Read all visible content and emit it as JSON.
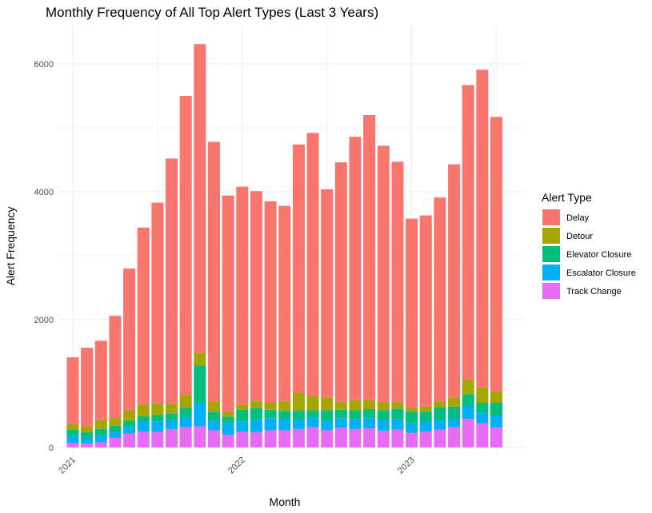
{
  "chart_data": {
    "type": "bar",
    "stacked": true,
    "title": "Monthly Frequency of All Top Alert Types (Last 3 Years)",
    "xlabel": "Month",
    "ylabel": "Alert Frequency",
    "ylim": [
      0,
      6500
    ],
    "yticks": [
      0,
      2000,
      4000,
      6000
    ],
    "xtick_labels": [
      "2021",
      "2022",
      "2023"
    ],
    "grid": true,
    "legend_title": "Alert Type",
    "legend_position": "right",
    "colors": {
      "Delay": "#f8766d",
      "Detour": "#a3a500",
      "Elevator Closure": "#00bf7d",
      "Escalator Closure": "#00b0f6",
      "Track Change": "#e76bf3"
    },
    "categories": [
      "2021-01",
      "2021-02",
      "2021-03",
      "2021-04",
      "2021-05",
      "2021-06",
      "2021-07",
      "2021-08",
      "2021-09",
      "2021-10",
      "2021-11",
      "2021-12",
      "2022-01",
      "2022-02",
      "2022-03",
      "2022-04",
      "2022-05",
      "2022-06",
      "2022-07",
      "2022-08",
      "2022-09",
      "2022-10",
      "2022-11",
      "2022-12",
      "2023-01",
      "2023-02",
      "2023-03",
      "2023-04",
      "2023-05",
      "2023-06",
      "2023-07"
    ],
    "series": [
      {
        "name": "Track Change",
        "values": [
          70,
          60,
          80,
          150,
          220,
          250,
          240,
          290,
          320,
          330,
          270,
          200,
          250,
          240,
          270,
          270,
          290,
          320,
          270,
          310,
          290,
          300,
          260,
          280,
          230,
          250,
          280,
          320,
          450,
          380,
          310
        ]
      },
      {
        "name": "Escalator Closure",
        "values": [
          110,
          90,
          100,
          100,
          100,
          150,
          170,
          140,
          150,
          370,
          150,
          180,
          160,
          200,
          190,
          180,
          140,
          150,
          150,
          150,
          150,
          160,
          170,
          160,
          150,
          150,
          150,
          130,
          200,
          160,
          190
        ]
      },
      {
        "name": "Elevator Closure",
        "values": [
          100,
          90,
          110,
          90,
          100,
          90,
          100,
          100,
          150,
          580,
          140,
          100,
          180,
          180,
          130,
          120,
          150,
          110,
          160,
          130,
          140,
          140,
          150,
          170,
          180,
          160,
          200,
          190,
          180,
          160,
          200
        ]
      },
      {
        "name": "Detour",
        "values": [
          90,
          90,
          140,
          120,
          160,
          180,
          170,
          150,
          200,
          200,
          160,
          70,
          80,
          110,
          110,
          150,
          280,
          220,
          200,
          120,
          160,
          140,
          130,
          100,
          60,
          80,
          90,
          140,
          230,
          240,
          180
        ]
      },
      {
        "name": "Delay",
        "values": [
          1040,
          1230,
          1240,
          1600,
          2220,
          2770,
          3150,
          3840,
          4680,
          4830,
          4060,
          3390,
          3410,
          3280,
          3150,
          3060,
          3880,
          4120,
          3260,
          3750,
          4120,
          4460,
          4010,
          3760,
          2960,
          2990,
          3190,
          3650,
          4610,
          4970,
          4290
        ]
      }
    ]
  }
}
